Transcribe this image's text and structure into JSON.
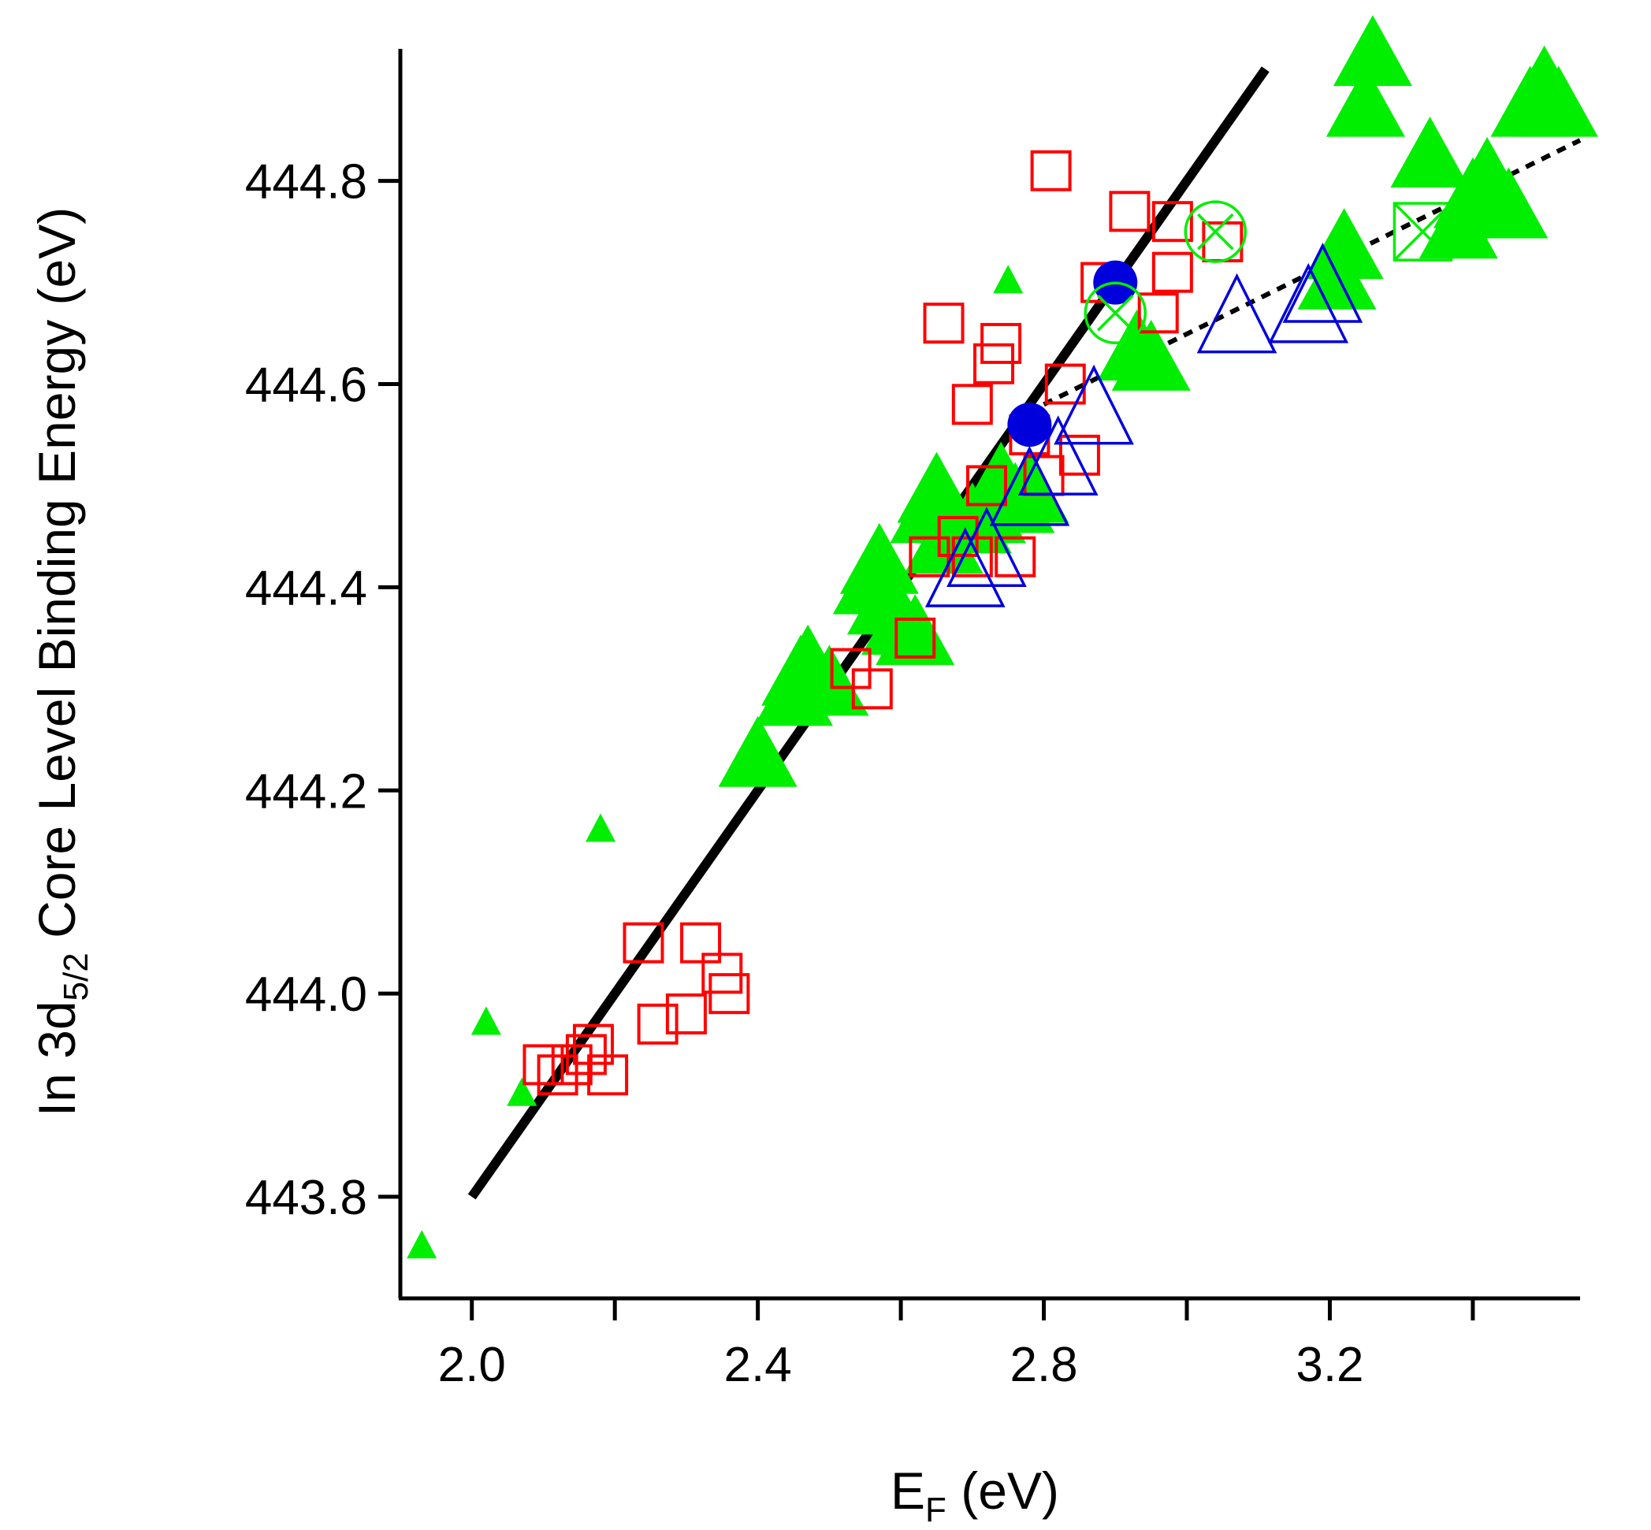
{
  "chart_data": {
    "type": "scatter",
    "title": "",
    "xlabel": {
      "main": "E",
      "sub": "F",
      "unit": " (eV)"
    },
    "ylabel": {
      "prefix": "In 3d",
      "sub": "5/2",
      "suffix": " Core Level Binding Energy (eV)"
    },
    "xlim": [
      1.9,
      3.55
    ],
    "ylim": [
      443.7,
      444.93
    ],
    "x_ticks": [
      2.0,
      2.4,
      2.8,
      3.2
    ],
    "x_tick_labels": [
      "2.0",
      "2.4",
      "2.8",
      "3.2"
    ],
    "x_minor_ticks": [
      2.2,
      2.6,
      3.0,
      3.4
    ],
    "y_ticks": [
      443.8,
      444.0,
      444.2,
      444.4,
      444.6,
      444.8
    ],
    "y_tick_labels": [
      "443.8",
      "444.0",
      "444.2",
      "444.4",
      "444.6",
      "444.8"
    ],
    "grid": false,
    "colors": {
      "green": "#00ee00",
      "red": "#ff0000",
      "blue": "#0000dd",
      "line": "#000000"
    },
    "series": [
      {
        "marker": "filled-triangle-small",
        "color": "#00ee00",
        "x": [
          1.93,
          2.02,
          2.07,
          2.18,
          2.75
        ],
        "y": [
          443.75,
          443.97,
          443.9,
          444.16,
          444.7
        ]
      },
      {
        "marker": "filled-triangle-large",
        "color": "#00ee00",
        "x": [
          2.4,
          2.45,
          2.46,
          2.47,
          2.5,
          2.56,
          2.57,
          2.58,
          2.6,
          2.62,
          2.64,
          2.65,
          2.66,
          2.7,
          2.72,
          2.74,
          2.76,
          2.78,
          2.93,
          2.95,
          3.21,
          3.22,
          3.25,
          3.26,
          3.34,
          3.38,
          3.4,
          3.42,
          3.45,
          3.48,
          3.5,
          3.52
        ],
        "y": [
          444.23,
          444.29,
          444.31,
          444.32,
          444.3,
          444.4,
          444.42,
          444.38,
          444.36,
          444.35,
          444.47,
          444.49,
          444.44,
          444.46,
          444.47,
          444.5,
          444.48,
          444.49,
          444.63,
          444.62,
          444.7,
          444.73,
          444.87,
          444.92,
          444.82,
          444.75,
          444.78,
          444.8,
          444.77,
          444.87,
          444.89,
          444.87
        ]
      },
      {
        "marker": "open-square",
        "color": "#ff0000",
        "x": [
          2.1,
          2.12,
          2.14,
          2.16,
          2.17,
          2.19,
          2.24,
          2.26,
          2.3,
          2.32,
          2.35,
          2.36,
          2.53,
          2.56,
          2.62,
          2.64,
          2.66,
          2.68,
          2.7,
          2.7,
          2.72,
          2.73,
          2.74,
          2.76,
          2.78,
          2.8,
          2.81,
          2.83,
          2.85,
          2.88,
          2.92,
          2.96,
          2.98,
          2.98,
          3.05
        ],
        "y": [
          443.93,
          443.92,
          443.93,
          443.94,
          443.95,
          443.92,
          444.05,
          443.97,
          443.98,
          444.05,
          444.02,
          444.0,
          444.32,
          444.3,
          444.35,
          444.43,
          444.66,
          444.45,
          444.43,
          444.58,
          444.5,
          444.62,
          444.64,
          444.43,
          444.55,
          444.51,
          444.81,
          444.6,
          444.53,
          444.7,
          444.77,
          444.67,
          444.76,
          444.71,
          444.74
        ]
      },
      {
        "marker": "open-triangle",
        "color": "#0000dd",
        "x": [
          2.69,
          2.72,
          2.78,
          2.82,
          2.87,
          3.07,
          3.17,
          3.19
        ],
        "y": [
          444.41,
          444.43,
          444.49,
          444.52,
          444.57,
          444.66,
          444.67,
          444.69
        ]
      },
      {
        "marker": "filled-circle",
        "color": "#0000dd",
        "x": [
          2.78,
          2.9
        ],
        "y": [
          444.56,
          444.7
        ]
      },
      {
        "marker": "circle-x",
        "color": "#00ee00",
        "x": [
          2.9,
          3.04
        ],
        "y": [
          444.67,
          444.75
        ]
      },
      {
        "marker": "square-x",
        "color": "#00ee00",
        "x": [
          3.33
        ],
        "y": [
          444.75
        ]
      }
    ],
    "fit_lines": [
      {
        "style": "solid",
        "x": [
          2.0,
          3.11
        ],
        "y": [
          443.8,
          444.91
        ]
      },
      {
        "style": "dotted",
        "x": [
          2.8,
          3.55
        ],
        "y": [
          444.58,
          444.84
        ]
      }
    ]
  }
}
